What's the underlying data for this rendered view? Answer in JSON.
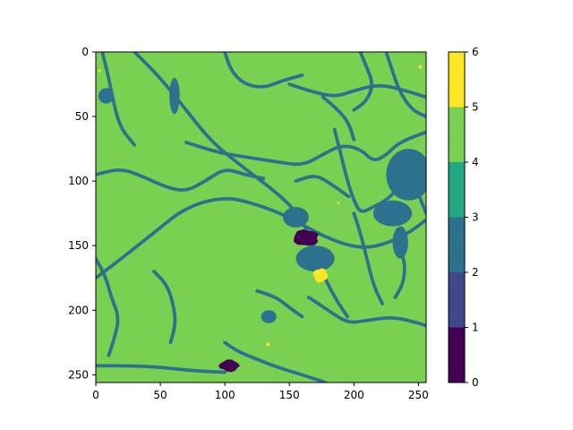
{
  "chart_data": {
    "type": "heatmap",
    "title": "",
    "xlabel": "",
    "ylabel": "",
    "xlim": [
      0,
      256
    ],
    "ylim": [
      256,
      0
    ],
    "x_ticks": [
      0,
      50,
      100,
      150,
      200,
      250
    ],
    "y_ticks": [
      0,
      50,
      100,
      150,
      200,
      250
    ],
    "colorbar": {
      "boundaries": [
        0,
        1,
        2,
        3,
        4,
        5,
        6
      ],
      "colors": [
        "#440154",
        "#3f4889",
        "#2c728e",
        "#22a884",
        "#7ad151",
        "#fde725"
      ],
      "ticks": [
        0,
        1,
        2,
        3,
        4,
        5,
        6
      ]
    },
    "background_class": 4,
    "background_color": "#7ad151",
    "channel_color": "#2c728e",
    "channels": [
      [
        [
          0,
          175
        ],
        [
          20,
          160
        ],
        [
          45,
          140
        ],
        [
          70,
          120
        ],
        [
          100,
          112
        ],
        [
          125,
          118
        ],
        [
          150,
          128
        ],
        [
          175,
          142
        ],
        [
          195,
          150
        ],
        [
          215,
          152
        ],
        [
          240,
          142
        ],
        [
          256,
          130
        ]
      ],
      [
        [
          30,
          0
        ],
        [
          50,
          20
        ],
        [
          70,
          45
        ],
        [
          90,
          70
        ],
        [
          115,
          90
        ],
        [
          135,
          105
        ],
        [
          150,
          118
        ],
        [
          160,
          130
        ],
        [
          168,
          150
        ],
        [
          175,
          170
        ],
        [
          185,
          190
        ],
        [
          195,
          205
        ]
      ],
      [
        [
          70,
          70
        ],
        [
          95,
          78
        ],
        [
          120,
          82
        ],
        [
          140,
          85
        ],
        [
          160,
          88
        ],
        [
          175,
          80
        ],
        [
          190,
          72
        ],
        [
          205,
          75
        ],
        [
          215,
          85
        ],
        [
          225,
          80
        ],
        [
          235,
          70
        ],
        [
          256,
          62
        ]
      ],
      [
        [
          0,
          95
        ],
        [
          20,
          90
        ],
        [
          40,
          98
        ],
        [
          55,
          105
        ],
        [
          70,
          108
        ],
        [
          85,
          100
        ],
        [
          100,
          90
        ],
        [
          115,
          95
        ],
        [
          130,
          98
        ]
      ],
      [
        [
          5,
          0
        ],
        [
          10,
          20
        ],
        [
          15,
          45
        ],
        [
          20,
          60
        ],
        [
          30,
          72
        ]
      ],
      [
        [
          150,
          25
        ],
        [
          165,
          30
        ],
        [
          185,
          35
        ],
        [
          200,
          30
        ],
        [
          220,
          25
        ],
        [
          240,
          30
        ],
        [
          256,
          35
        ]
      ],
      [
        [
          225,
          0
        ],
        [
          230,
          15
        ],
        [
          235,
          30
        ],
        [
          245,
          45
        ],
        [
          256,
          50
        ]
      ],
      [
        [
          100,
          0
        ],
        [
          105,
          15
        ],
        [
          115,
          25
        ],
        [
          130,
          28
        ],
        [
          145,
          22
        ],
        [
          160,
          18
        ]
      ],
      [
        [
          185,
          60
        ],
        [
          190,
          80
        ],
        [
          195,
          100
        ],
        [
          200,
          115
        ],
        [
          205,
          125
        ],
        [
          215,
          120
        ],
        [
          225,
          115
        ],
        [
          235,
          105
        ],
        [
          250,
          100
        ],
        [
          256,
          98
        ]
      ],
      [
        [
          200,
          125
        ],
        [
          205,
          140
        ],
        [
          210,
          160
        ],
        [
          215,
          180
        ],
        [
          222,
          195
        ]
      ],
      [
        [
          235,
          150
        ],
        [
          240,
          165
        ],
        [
          238,
          180
        ],
        [
          232,
          190
        ]
      ],
      [
        [
          165,
          190
        ],
        [
          180,
          200
        ],
        [
          195,
          210
        ],
        [
          210,
          208
        ],
        [
          230,
          205
        ],
        [
          250,
          210
        ],
        [
          256,
          212
        ]
      ],
      [
        [
          0,
          160
        ],
        [
          8,
          175
        ],
        [
          12,
          190
        ],
        [
          18,
          205
        ],
        [
          15,
          220
        ],
        [
          10,
          235
        ]
      ],
      [
        [
          100,
          225
        ],
        [
          110,
          232
        ],
        [
          125,
          238
        ],
        [
          140,
          244
        ],
        [
          160,
          250
        ],
        [
          178,
          256
        ]
      ],
      [
        [
          0,
          243
        ],
        [
          25,
          243
        ],
        [
          50,
          244
        ],
        [
          75,
          247
        ],
        [
          100,
          248
        ]
      ],
      [
        [
          45,
          170
        ],
        [
          55,
          180
        ],
        [
          60,
          195
        ],
        [
          62,
          210
        ],
        [
          58,
          225
        ]
      ],
      [
        [
          125,
          185
        ],
        [
          140,
          190
        ],
        [
          150,
          198
        ],
        [
          160,
          205
        ]
      ],
      [
        [
          176,
          35
        ],
        [
          188,
          45
        ],
        [
          196,
          55
        ],
        [
          200,
          68
        ]
      ],
      [
        [
          205,
          0
        ],
        [
          210,
          12
        ],
        [
          215,
          25
        ],
        [
          210,
          38
        ],
        [
          200,
          45
        ]
      ],
      [
        [
          155,
          100
        ],
        [
          170,
          95
        ],
        [
          182,
          102
        ],
        [
          196,
          112
        ]
      ],
      [
        [
          250,
          110
        ],
        [
          256,
          125
        ]
      ]
    ],
    "ponds": [
      {
        "x": 57,
        "y": 20,
        "w": 8,
        "h": 28,
        "value": 2
      },
      {
        "x": 2,
        "y": 28,
        "w": 12,
        "h": 12,
        "value": 2
      },
      {
        "x": 215,
        "y": 115,
        "w": 30,
        "h": 20,
        "value": 2
      },
      {
        "x": 225,
        "y": 75,
        "w": 35,
        "h": 40,
        "value": 2
      },
      {
        "x": 230,
        "y": 135,
        "w": 12,
        "h": 25,
        "value": 2
      },
      {
        "x": 155,
        "y": 150,
        "w": 30,
        "h": 20,
        "value": 2
      },
      {
        "x": 145,
        "y": 120,
        "w": 20,
        "h": 16,
        "value": 2
      },
      {
        "x": 128,
        "y": 200,
        "w": 12,
        "h": 10,
        "value": 2
      }
    ],
    "patches": [
      {
        "x": 152,
        "y": 137,
        "w": 22,
        "h": 14,
        "value": 0
      },
      {
        "x": 95,
        "y": 238,
        "w": 17,
        "h": 10,
        "value": 0
      },
      {
        "x": 168,
        "y": 167,
        "w": 12,
        "h": 12,
        "value": 5
      },
      {
        "x": 187,
        "y": 116,
        "w": 2,
        "h": 2,
        "value": 5
      },
      {
        "x": 250,
        "y": 10,
        "w": 3,
        "h": 3,
        "value": 5
      },
      {
        "x": 2,
        "y": 13,
        "w": 2,
        "h": 3,
        "value": 5
      },
      {
        "x": 132,
        "y": 225,
        "w": 3,
        "h": 3,
        "value": 5
      }
    ]
  }
}
